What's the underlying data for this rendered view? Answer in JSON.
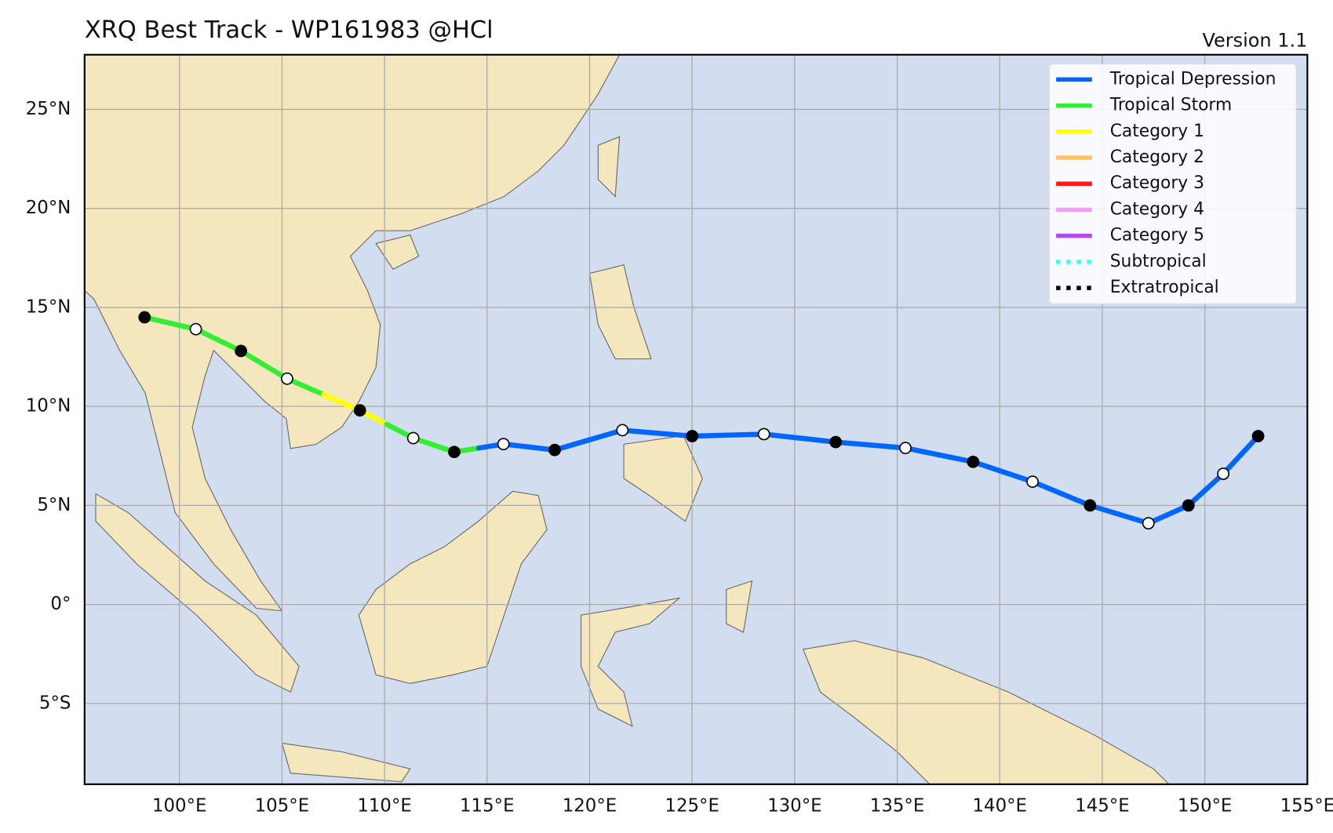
{
  "chart_data": {
    "type": "track",
    "title": "XRQ Best Track - WP161983  @HCl",
    "version": "Version 1.1",
    "xlim": [
      95.375,
      155
    ],
    "ylim": [
      -9.08,
      27.76
    ],
    "xticks": [
      {
        "value": 100,
        "label": "100°E"
      },
      {
        "value": 105,
        "label": "105°E"
      },
      {
        "value": 110,
        "label": "110°E"
      },
      {
        "value": 115,
        "label": "115°E"
      },
      {
        "value": 120,
        "label": "120°E"
      },
      {
        "value": 125,
        "label": "125°E"
      },
      {
        "value": 130,
        "label": "130°E"
      },
      {
        "value": 135,
        "label": "135°E"
      },
      {
        "value": 140,
        "label": "140°E"
      },
      {
        "value": 145,
        "label": "145°E"
      },
      {
        "value": 150,
        "label": "150°E"
      },
      {
        "value": 155,
        "label": "155°E"
      }
    ],
    "yticks": [
      {
        "value": -5,
        "label": "5°S"
      },
      {
        "value": 0,
        "label": "0°"
      },
      {
        "value": 5,
        "label": "5°N"
      },
      {
        "value": 10,
        "label": "10°N"
      },
      {
        "value": 15,
        "label": "15°N"
      },
      {
        "value": 20,
        "label": "20°N"
      },
      {
        "value": 25,
        "label": "25°N"
      }
    ],
    "grid": true,
    "legend_position": "upper right",
    "legend": [
      {
        "name": "Tropical Depression",
        "color": "#0066ff",
        "dotted": false
      },
      {
        "name": "Tropical Storm",
        "color": "#33ee33",
        "dotted": false
      },
      {
        "name": "Category 1",
        "color": "#ffff00",
        "dotted": false
      },
      {
        "name": "Category 2",
        "color": "#ffc266",
        "dotted": false
      },
      {
        "name": "Category 3",
        "color": "#ff1a1a",
        "dotted": false
      },
      {
        "name": "Category 4",
        "color": "#ff99ff",
        "dotted": false
      },
      {
        "name": "Category 5",
        "color": "#b04cf0",
        "dotted": false
      },
      {
        "name": "Subtropical",
        "color": "#33ffff",
        "dotted": true
      },
      {
        "name": "Extratropical",
        "color": "#000000",
        "dotted": true
      }
    ],
    "track": {
      "lon": [
        98.3,
        100.8,
        103.0,
        105.25,
        108.8,
        111.4,
        113.4,
        115.8,
        118.3,
        121.6,
        125.0,
        128.5,
        132.0,
        135.4,
        138.7,
        141.6,
        144.4,
        147.25,
        149.2,
        150.9,
        152.6
      ],
      "lat": [
        14.5,
        13.9,
        12.8,
        11.4,
        9.8,
        8.4,
        7.7,
        8.1,
        7.8,
        8.8,
        8.5,
        8.6,
        8.2,
        7.9,
        7.2,
        6.2,
        5.0,
        4.1,
        5.0,
        6.6,
        8.5
      ],
      "category": [
        "Tropical Storm",
        "Tropical Storm",
        "Tropical Storm",
        "Tropical Storm",
        "Category 1",
        "Tropical Storm",
        "Tropical Storm",
        "Tropical Depression",
        "Tropical Depression",
        "Tropical Depression",
        "Tropical Depression",
        "Tropical Depression",
        "Tropical Depression",
        "Tropical Depression",
        "Tropical Depression",
        "Tropical Depression",
        "Tropical Depression",
        "Tropical Depression",
        "Tropical Depression",
        "Tropical Depression",
        "Tropical Depression"
      ],
      "marker_fill": [
        "#000000",
        "#ffffff",
        "#000000",
        "#ffffff",
        "#000000",
        "#ffffff",
        "#000000",
        "#ffffff",
        "#000000",
        "#ffffff",
        "#000000",
        "#ffffff",
        "#000000",
        "#ffffff",
        "#000000",
        "#ffffff",
        "#000000",
        "#ffffff",
        "#000000",
        "#ffffff",
        "#000000"
      ]
    }
  }
}
